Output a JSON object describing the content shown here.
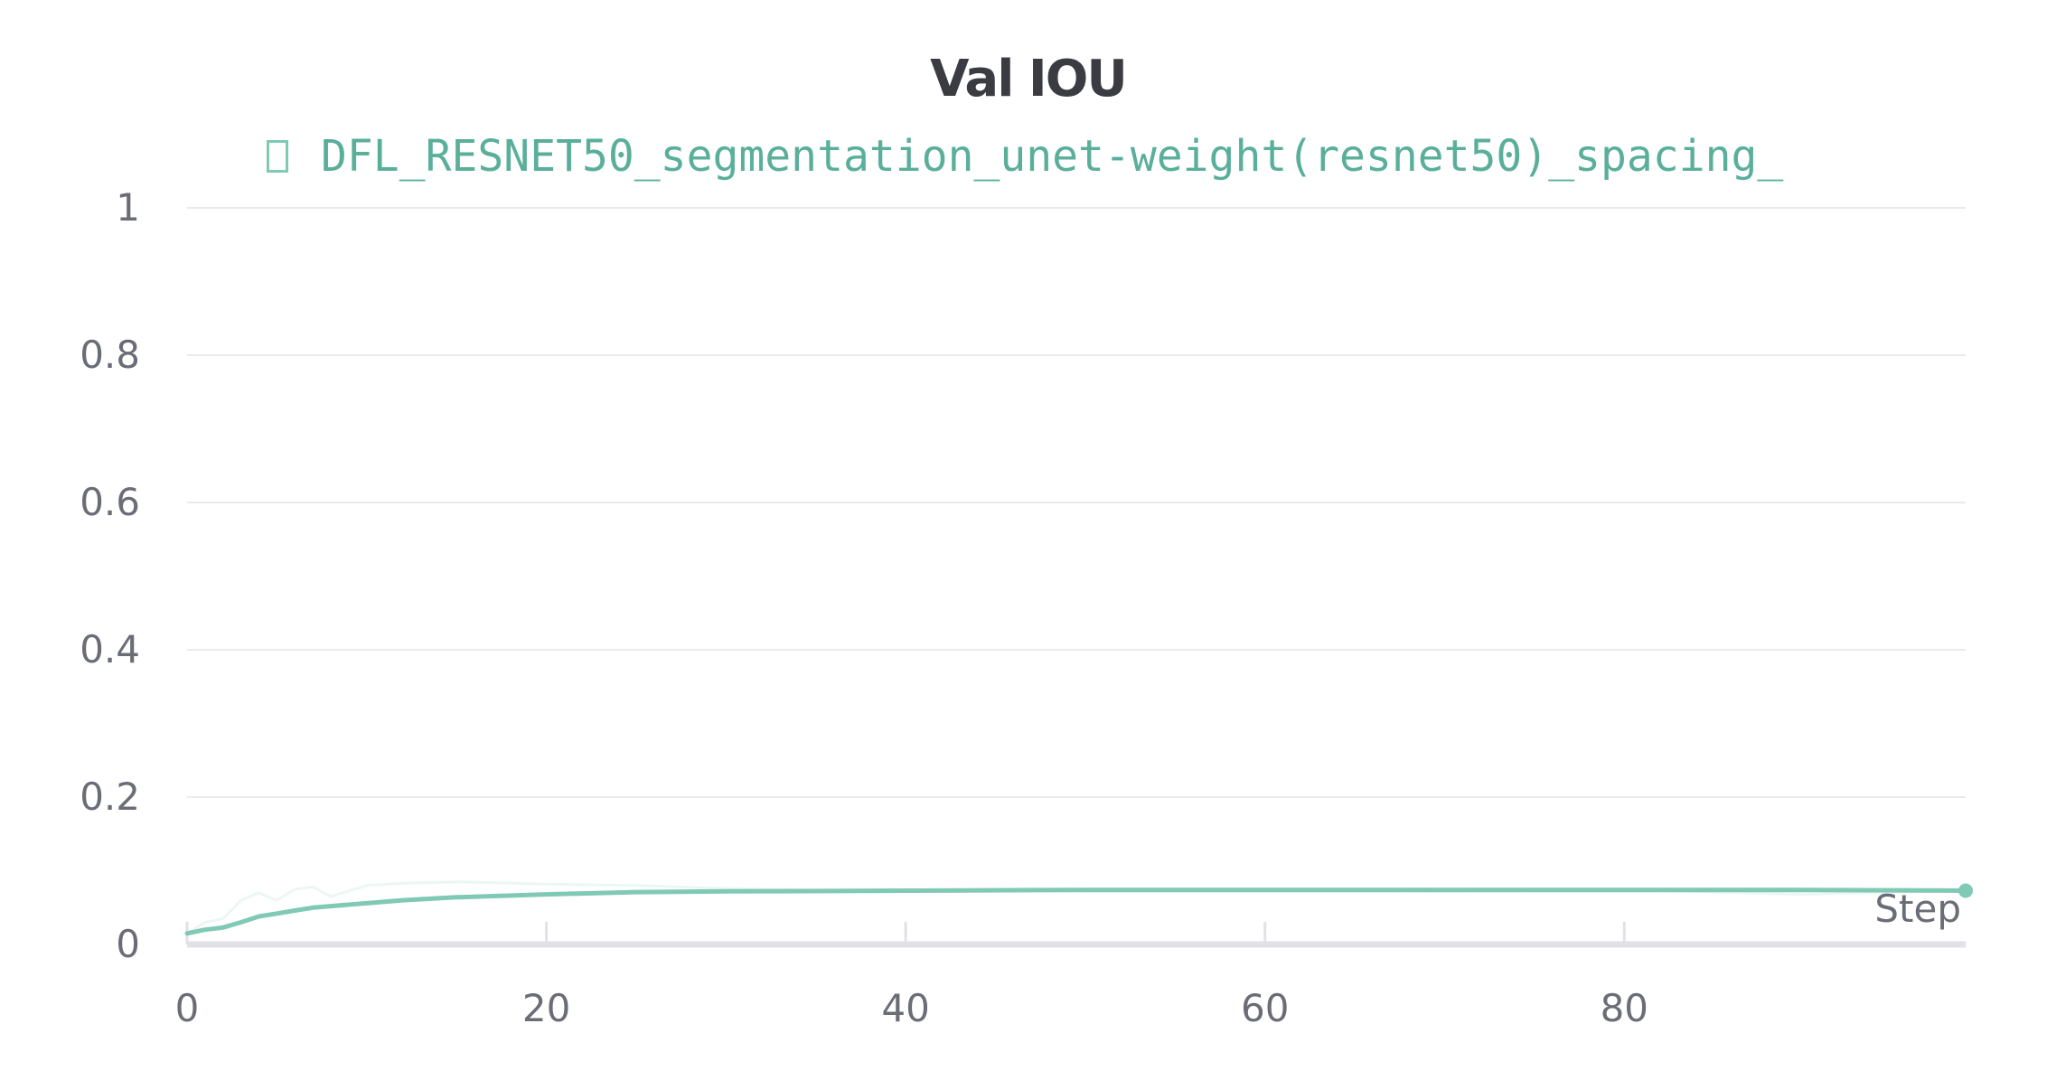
{
  "chart_data": {
    "type": "line",
    "title": "Val IOU",
    "xlabel": "Step",
    "ylabel": "",
    "xlim": [
      0,
      99
    ],
    "ylim": [
      0,
      1
    ],
    "xticks": [
      0,
      20,
      40,
      60,
      80
    ],
    "yticks": [
      0,
      0.2,
      0.4,
      0.6,
      0.8,
      1
    ],
    "xtick_labels": [
      "0",
      "20",
      "40",
      "60",
      "80"
    ],
    "ytick_labels": [
      "0",
      "0.2",
      "0.4",
      "0.6",
      "0.8",
      "1"
    ],
    "grid": true,
    "legend_position": "top",
    "series": [
      {
        "name": "DFL_RESNET50_segmentation_unet-weight(resnet50)_spacing_",
        "color": "#7fc9b5",
        "x": [
          0,
          1,
          2,
          3,
          4,
          5,
          6,
          7,
          8,
          10,
          12,
          15,
          20,
          25,
          30,
          40,
          50,
          60,
          70,
          80,
          90,
          99
        ],
        "y": [
          0.015,
          0.02,
          0.023,
          0.03,
          0.038,
          0.042,
          0.046,
          0.05,
          0.052,
          0.056,
          0.06,
          0.064,
          0.068,
          0.071,
          0.072,
          0.073,
          0.074,
          0.074,
          0.074,
          0.074,
          0.074,
          0.073
        ],
        "raw_y": [
          0.015,
          0.03,
          0.035,
          0.06,
          0.07,
          0.06,
          0.075,
          0.078,
          0.065,
          0.08,
          0.083,
          0.085,
          0.082,
          0.08,
          0.076,
          0.072,
          0.073,
          0.075,
          0.072,
          0.074,
          0.068,
          0.073
        ]
      }
    ]
  }
}
